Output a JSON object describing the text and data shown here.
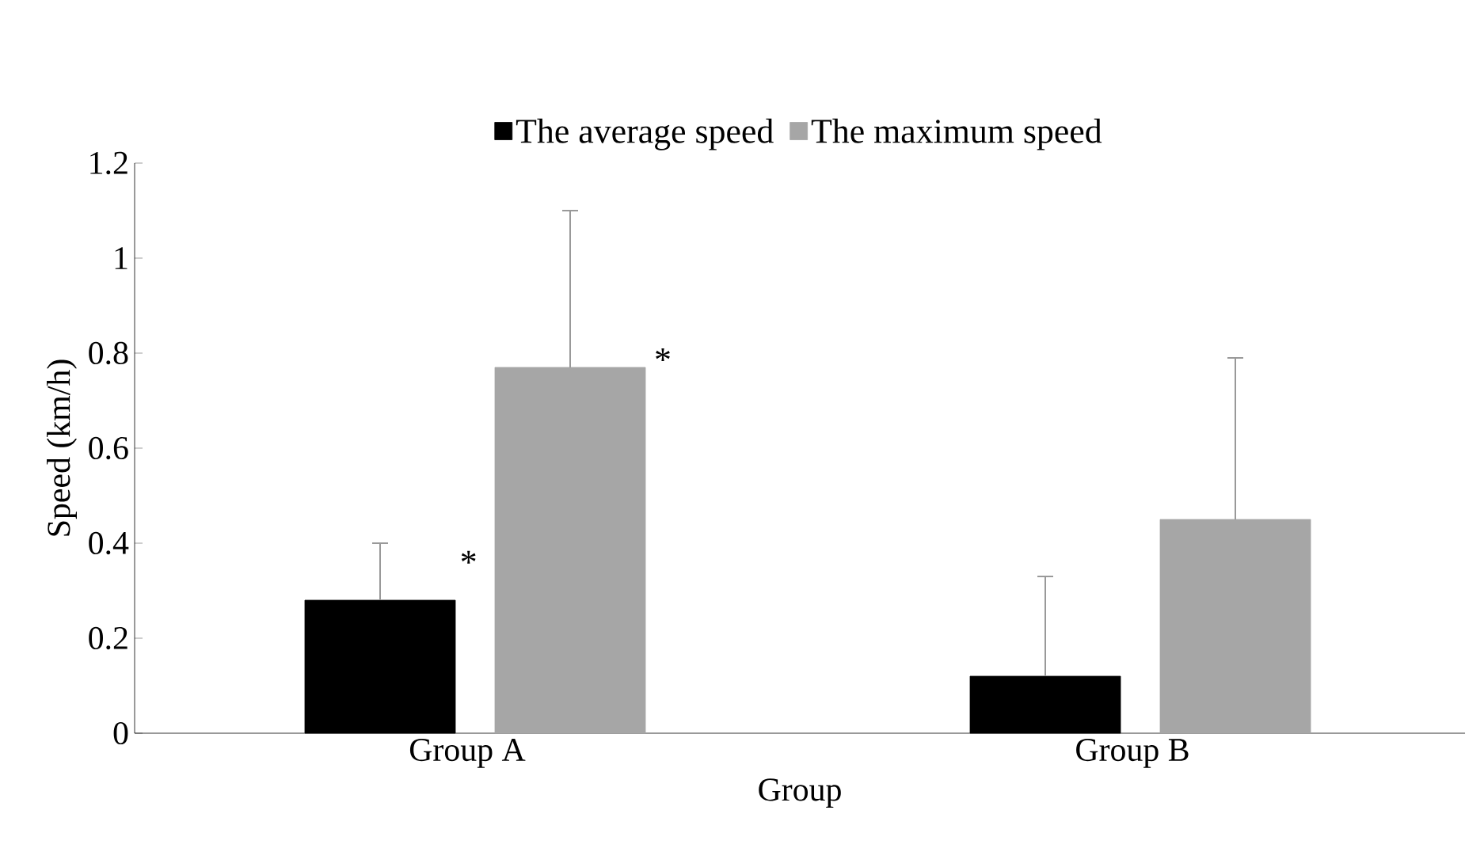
{
  "chart_data": {
    "type": "bar",
    "xlabel": "Group",
    "ylabel": "Speed (km/h)",
    "categories": [
      "Group A",
      "Group B"
    ],
    "series": [
      {
        "name": "The average speed",
        "color": "#000000",
        "values": [
          0.28,
          0.12
        ],
        "errors": [
          [
            0.28,
            0.4
          ],
          [
            0.12,
            0.33
          ]
        ]
      },
      {
        "name": "The maximum speed",
        "color": "#a6a6a6",
        "values": [
          0.77,
          0.45
        ],
        "errors": [
          [
            0.77,
            1.1
          ],
          [
            0.45,
            0.79
          ]
        ]
      }
    ],
    "ylim": [
      0,
      1.2
    ],
    "yticks": [
      0,
      0.2,
      0.4,
      0.6,
      0.8,
      1,
      1.2
    ],
    "annotations": [
      "*",
      "*"
    ],
    "legend": "top",
    "grid": false
  }
}
